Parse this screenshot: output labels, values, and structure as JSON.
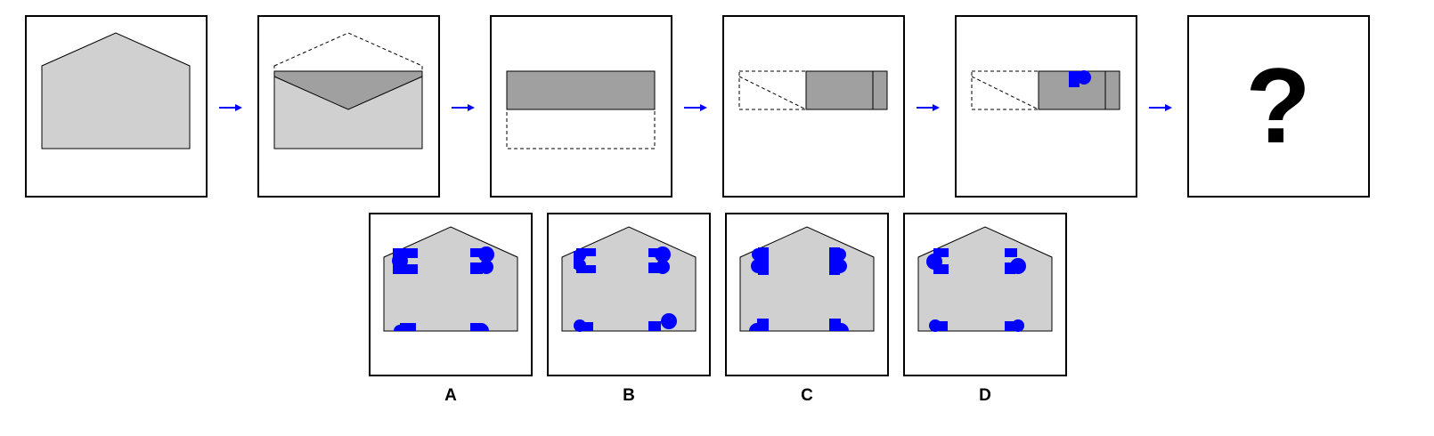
{
  "puzzle": {
    "question_mark": "?",
    "options": [
      {
        "label": "A"
      },
      {
        "label": "B"
      },
      {
        "label": "C"
      },
      {
        "label": "D"
      }
    ]
  },
  "colors": {
    "paper_light": "#d0d0d0",
    "paper_dark": "#a0a0a0",
    "hole_blue": "#0000ff",
    "arrow_blue": "#0000ff",
    "outline": "#000000"
  }
}
